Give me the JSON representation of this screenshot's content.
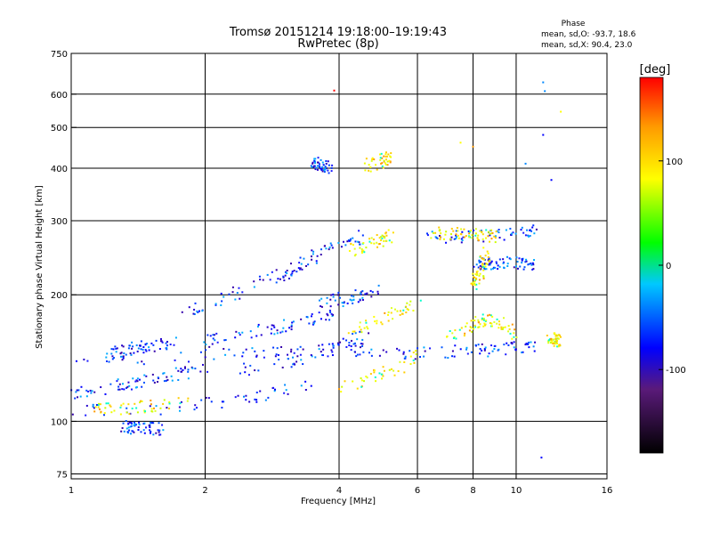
{
  "chart_data": {
    "type": "scatter",
    "title": "Tromsø 20151214 19:18:00–19:19:43",
    "subtitle": "RwPretec (8p)",
    "xlabel": "Frequency [MHz]",
    "ylabel": "Stationary phase Virtual Height [km]",
    "x_scale": "log",
    "y_scale": "log",
    "xlim": [
      1,
      16
    ],
    "ylim": [
      73,
      750
    ],
    "x_ticks": [
      1,
      2,
      4,
      6,
      8,
      10,
      16
    ],
    "x_tick_labels": [
      "1",
      "2",
      "4",
      "6",
      "8",
      "10",
      "16"
    ],
    "y_ticks": [
      75,
      100,
      200,
      300,
      400,
      500,
      600,
      750
    ],
    "y_tick_labels": [
      "75",
      "100",
      "200",
      "300",
      "400",
      "500",
      "600",
      "750"
    ],
    "grid": true,
    "phase_legend": {
      "title": "Phase",
      "line1": "mean, sd,O: -93.7, 18.6",
      "line2": "mean, sd,X:  90.4, 23.0"
    },
    "colorbar": {
      "label": "[deg]",
      "range": [
        -180,
        180
      ],
      "ticks": [
        100,
        0,
        -100
      ],
      "tick_labels": [
        "100",
        "0",
        "-100"
      ],
      "stops": [
        "#000000",
        "#5a1a7a",
        "#0000ff",
        "#00c8ff",
        "#00ff00",
        "#ffff00",
        "#ff9900",
        "#ff0000"
      ]
    },
    "series": [
      {
        "mode": "O",
        "traces": [
          {
            "x": [
              1.0,
              2.0,
              3.0,
              4.0,
              5.0
            ],
            "y": [
              140,
              143,
              146,
              148,
              148
            ]
          },
          {
            "x": [
              1.0,
              1.5,
              2.0,
              2.5,
              3.0,
              3.5
            ],
            "y": [
              106,
              107,
              110,
              113,
              118,
              122
            ]
          },
          {
            "x": [
              1.0,
              1.3,
              1.6,
              2.0
            ],
            "y": [
              117,
              122,
              128,
              133
            ]
          },
          {
            "x": [
              1.2,
              1.4,
              1.7
            ],
            "y": [
              143,
              150,
              153
            ]
          },
          {
            "x": [
              2.0,
              2.5,
              3.0,
              3.5,
              4.0
            ],
            "y": [
              155,
              162,
              168,
              175,
              185
            ]
          },
          {
            "x": [
              2.2,
              2.8,
              3.4,
              4.0,
              4.6
            ],
            "y": [
              130,
              136,
              142,
              150,
              160
            ]
          },
          {
            "x": [
              1.8,
              2.2,
              2.7,
              3.3
            ],
            "y": [
              180,
              195,
              215,
              240
            ]
          },
          {
            "x": [
              3.0,
              3.5,
              4.0,
              4.5
            ],
            "y": [
              220,
              245,
              265,
              275
            ]
          },
          {
            "x": [
              5.0,
              6.0,
              7.0,
              8.0,
              9.0,
              10.0,
              11.0
            ],
            "y": [
              145,
              145,
              146,
              147,
              148,
              150,
              152
            ]
          },
          {
            "x": [
              6.2,
              7.0,
              7.8,
              8.5,
              9.2,
              10.5,
              11.0
            ],
            "y": [
              273,
              274,
              275,
              276,
              276,
              281,
              283
            ]
          },
          {
            "x": [
              8.0,
              8.5,
              9.0,
              10.0,
              11.0
            ],
            "y": [
              236,
              237,
              239,
              237,
              238
            ]
          },
          {
            "x": [
              3.5,
              4.0,
              4.5,
              5.0
            ],
            "y": [
              190,
              195,
              200,
              205
            ]
          },
          {
            "x": [
              1.3,
              1.6
            ],
            "y": [
              97,
              96
            ]
          },
          {
            "x": [
              3.5,
              3.8
            ],
            "y": [
              410,
              400
            ]
          }
        ]
      },
      {
        "mode": "X",
        "traces": [
          {
            "x": [
              1.1,
              1.4,
              1.8
            ],
            "y": [
              106,
              108,
              110
            ]
          },
          {
            "x": [
              4.0,
              4.5,
              5.0,
              5.5,
              6.0
            ],
            "y": [
              120,
              125,
              130,
              135,
              145
            ]
          },
          {
            "x": [
              4.2,
              4.8,
              5.4,
              6.0
            ],
            "y": [
              165,
              172,
              182,
              190
            ]
          },
          {
            "x": [
              4.3,
              4.8,
              5.3
            ],
            "y": [
              255,
              265,
              280
            ]
          },
          {
            "x": [
              7.0,
              8.0,
              8.5,
              9.5,
              10.0
            ],
            "y": [
              160,
              170,
              175,
              170,
              160
            ]
          },
          {
            "x": [
              6.5,
              7.5,
              8.3,
              9.0
            ],
            "y": [
              280,
              280,
              278,
              275
            ]
          },
          {
            "x": [
              8.0,
              8.3,
              8.6
            ],
            "y": [
              210,
              225,
              250
            ]
          },
          {
            "x": [
              12.0,
              12.4
            ],
            "y": [
              155,
              157
            ]
          },
          {
            "x": [
              4.6,
              5.0,
              5.3
            ],
            "y": [
              405,
              415,
              425
            ]
          }
        ]
      }
    ]
  }
}
